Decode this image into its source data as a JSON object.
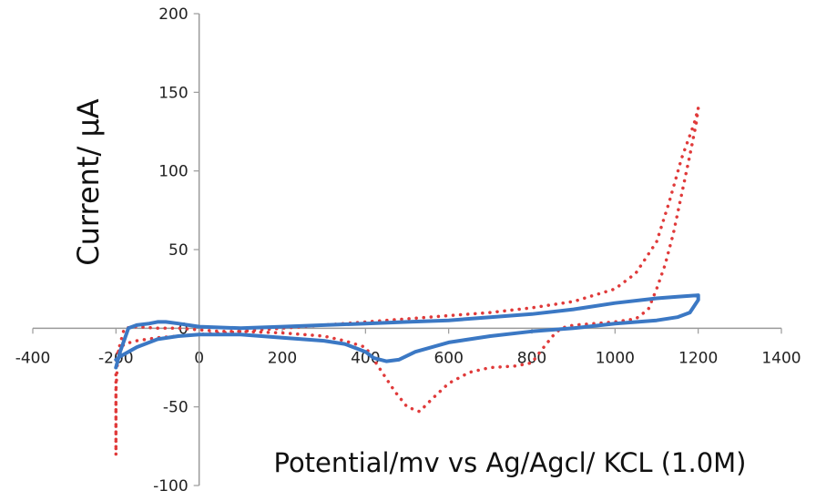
{
  "chart_data": {
    "type": "line",
    "title": "",
    "xlabel": "Potential/mv vs Ag/Agcl/ KCL (1.0M)",
    "ylabel": "Current/ μA",
    "xlim": [
      -400,
      1400
    ],
    "ylim": [
      -100,
      200
    ],
    "x_ticks": [
      "-400",
      "-200",
      "0",
      "200",
      "400",
      "600",
      "800",
      "1000",
      "1200",
      "1400"
    ],
    "y_ticks": [
      "-100",
      "-50",
      "0",
      "50",
      "100",
      "150",
      "200"
    ],
    "grid": false,
    "legend": "none",
    "series": [
      {
        "color": "#e03a3a",
        "style": "dotted",
        "x": [
          -200,
          -200,
          -195,
          -180,
          -150,
          -100,
          -50,
          0,
          100,
          200,
          300,
          400,
          500,
          600,
          700,
          800,
          900,
          1000,
          1050,
          1100,
          1130,
          1160,
          1190,
          1200,
          1195,
          1180,
          1160,
          1140,
          1120,
          1100,
          1080,
          1050,
          1000,
          950,
          900,
          870,
          850,
          820,
          800,
          760,
          700,
          650,
          600,
          560,
          530,
          500,
          470,
          440,
          420,
          400,
          350,
          300,
          200,
          100,
          50,
          0,
          -50,
          -100,
          -150,
          -180,
          -200,
          -200
        ],
        "y": [
          -80,
          -40,
          -15,
          -10,
          -8,
          -6,
          -5,
          -4,
          -2,
          0,
          2,
          4,
          6,
          8,
          10,
          13,
          17,
          25,
          35,
          55,
          80,
          108,
          130,
          140,
          130,
          110,
          85,
          60,
          40,
          25,
          12,
          6,
          4,
          3,
          2,
          0,
          -5,
          -15,
          -22,
          -24,
          -25,
          -28,
          -35,
          -45,
          -53,
          -50,
          -40,
          -28,
          -20,
          -12,
          -8,
          -5,
          -3,
          -2,
          -2,
          -1,
          0,
          0,
          1,
          0,
          -20,
          -80
        ]
      },
      {
        "color": "#3b78c4",
        "style": "solid",
        "x": [
          -200,
          -190,
          -170,
          -150,
          -120,
          -100,
          -80,
          -50,
          0,
          100,
          200,
          300,
          400,
          500,
          600,
          700,
          800,
          900,
          1000,
          1100,
          1150,
          1200,
          1200,
          1180,
          1150,
          1100,
          1000,
          900,
          800,
          700,
          600,
          520,
          480,
          450,
          420,
          400,
          350,
          300,
          200,
          100,
          0,
          -50,
          -100,
          -150,
          -190,
          -200
        ],
        "y": [
          -25,
          -15,
          0,
          2,
          3,
          4,
          4,
          3,
          1,
          0,
          1,
          2,
          3,
          4,
          5,
          7,
          9,
          12,
          16,
          19,
          20,
          21,
          18,
          10,
          7,
          5,
          3,
          0,
          -2,
          -5,
          -9,
          -15,
          -20,
          -21,
          -19,
          -15,
          -10,
          -8,
          -6,
          -4,
          -4,
          -5,
          -7,
          -12,
          -18,
          -20
        ]
      }
    ]
  }
}
